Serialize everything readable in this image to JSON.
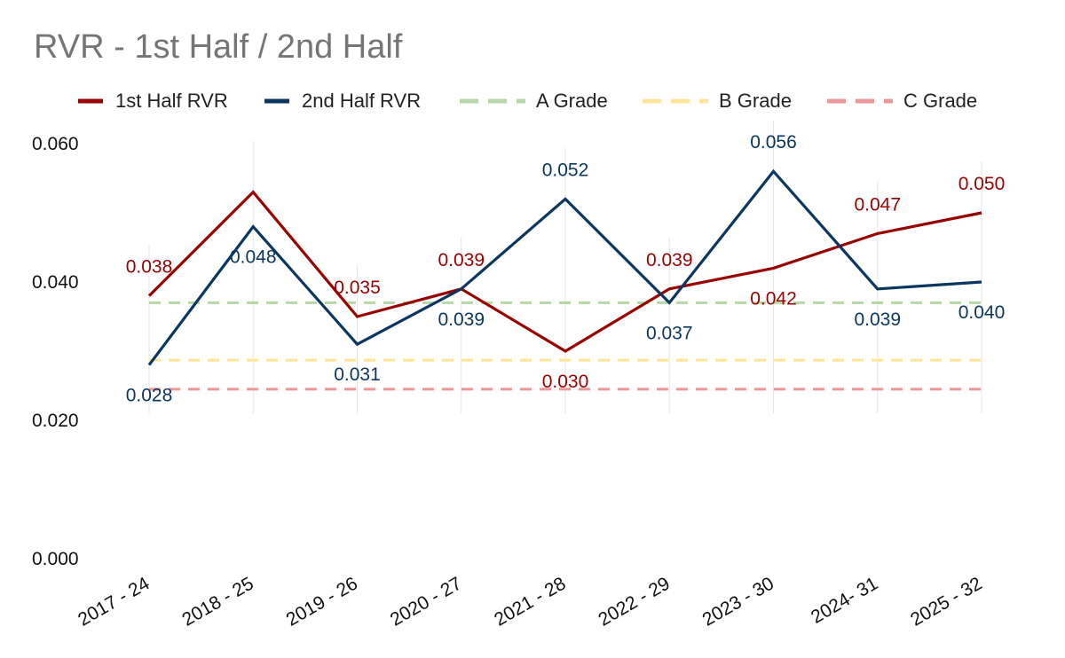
{
  "chart_data": {
    "type": "line",
    "title": "RVR - 1st Half / 2nd Half",
    "categories": [
      "2017 - 24",
      "2018 - 25",
      "2019 - 26",
      "2020 - 27",
      "2021 - 28",
      "2022 - 29",
      "2023 - 30",
      "2024- 31",
      "2025 - 32"
    ],
    "series": [
      {
        "name": "1st Half RVR",
        "color": "#990000",
        "values": [
          0.038,
          0.053,
          0.035,
          0.039,
          0.03,
          0.039,
          0.042,
          0.047,
          0.05
        ],
        "labels": [
          "0.038",
          "",
          "0.035",
          "0.039",
          "0.030",
          "0.039",
          "0.042",
          "0.047",
          "0.050"
        ]
      },
      {
        "name": "2nd Half RVR",
        "color": "#0b3660",
        "values": [
          0.028,
          0.048,
          0.031,
          0.039,
          0.052,
          0.037,
          0.056,
          0.039,
          0.04
        ],
        "labels": [
          "0.028",
          "0.048",
          "0.031",
          "0.039",
          "0.052",
          "0.037",
          "0.056",
          "0.039",
          "0.040"
        ]
      }
    ],
    "reference_lines": [
      {
        "name": "A Grade",
        "value": 0.037,
        "color": "#b6d7a8"
      },
      {
        "name": "B Grade",
        "value": 0.0287,
        "color": "#ffe599"
      },
      {
        "name": "C Grade",
        "value": 0.0245,
        "color": "#ea9999"
      }
    ],
    "yticks": [
      "0.000",
      "0.020",
      "0.040",
      "0.060"
    ],
    "ylim": [
      0,
      0.06
    ],
    "xlabel": "",
    "ylabel": "",
    "grid": false,
    "legend_position": "top"
  }
}
